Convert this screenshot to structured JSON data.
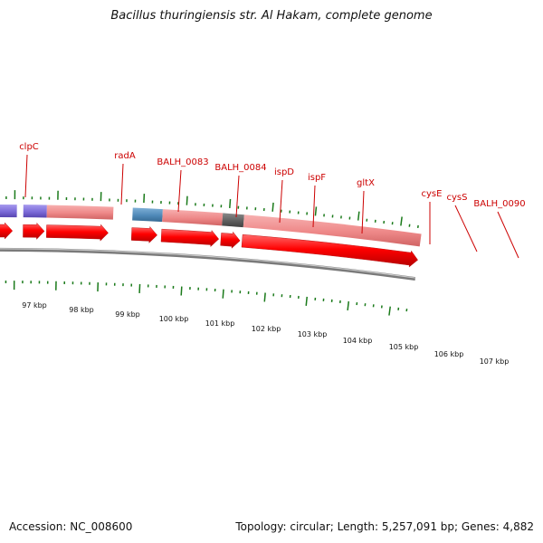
{
  "title": "Bacillus thuringiensis str. Al Hakam, complete genome",
  "footer": {
    "accession": "Accession: NC_008600",
    "summary": "Topology: circular; Length: 5,257,091 bp; Genes: 4,882"
  },
  "colors": {
    "gene_label": "#cc0000",
    "cds_red": "#ff0000",
    "tick_green": "#1a7a1a",
    "backbone": "#888888"
  },
  "gene_labels": [
    "clpC",
    "radA",
    "BALH_0083",
    "BALH_0084",
    "ispD",
    "ispF",
    "gltX",
    "cysE",
    "cysS",
    "BALH_0090"
  ],
  "kbp_labels": [
    "97 kbp",
    "98 kbp",
    "99 kbp",
    "100 kbp",
    "101 kbp",
    "102 kbp",
    "103 kbp",
    "104 kbp",
    "105 kbp",
    "106 kbp",
    "107 kbp"
  ]
}
